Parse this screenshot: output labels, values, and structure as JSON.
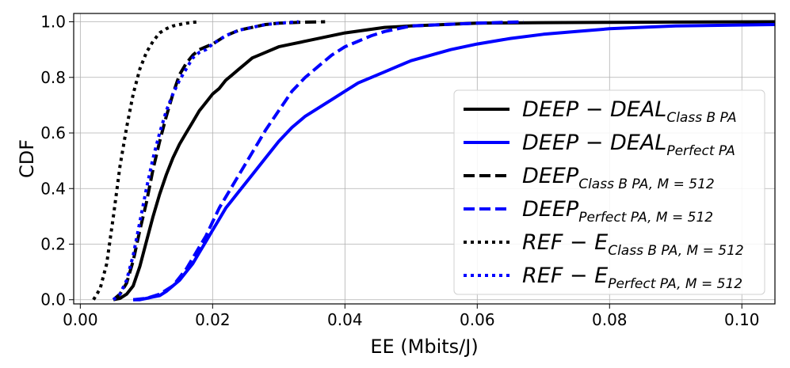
{
  "chart_data": {
    "type": "line",
    "title": "",
    "xlabel": "EE (Mbits/J)",
    "ylabel": "CDF",
    "xlim": [
      -0.001,
      0.105
    ],
    "ylim": [
      -0.015,
      1.03
    ],
    "xticks": [
      "0.00",
      "0.02",
      "0.04",
      "0.06",
      "0.08",
      "0.10"
    ],
    "xtick_values": [
      0.0,
      0.02,
      0.04,
      0.06,
      0.08,
      0.1
    ],
    "yticks": [
      "0.0",
      "0.2",
      "0.4",
      "0.6",
      "0.8",
      "1.0"
    ],
    "ytick_values": [
      0.0,
      0.2,
      0.4,
      0.6,
      0.8,
      1.0
    ],
    "grid": true,
    "legend_position": "lower-right",
    "series": [
      {
        "name": "DEEP − DEAL",
        "subscript": "Class B PA",
        "color": "#000000",
        "style": "solid",
        "x": [
          0.005,
          0.006,
          0.007,
          0.008,
          0.009,
          0.01,
          0.011,
          0.012,
          0.013,
          0.014,
          0.015,
          0.016,
          0.017,
          0.018,
          0.019,
          0.02,
          0.021,
          0.022,
          0.023,
          0.024,
          0.025,
          0.026,
          0.027,
          0.028,
          0.03,
          0.032,
          0.034,
          0.036,
          0.038,
          0.04,
          0.043,
          0.046,
          0.05,
          0.055,
          0.06,
          0.07,
          0.08,
          0.09,
          0.105
        ],
        "y": [
          0.0,
          0.005,
          0.02,
          0.05,
          0.12,
          0.21,
          0.3,
          0.38,
          0.45,
          0.51,
          0.56,
          0.6,
          0.64,
          0.68,
          0.71,
          0.74,
          0.76,
          0.79,
          0.81,
          0.83,
          0.85,
          0.87,
          0.88,
          0.89,
          0.91,
          0.92,
          0.93,
          0.94,
          0.95,
          0.96,
          0.97,
          0.98,
          0.985,
          0.99,
          0.995,
          0.997,
          0.998,
          0.999,
          1.0
        ]
      },
      {
        "name": "DEEP − DEAL",
        "subscript": "Perfect PA",
        "color": "#0000ff",
        "style": "solid",
        "x": [
          0.008,
          0.009,
          0.01,
          0.011,
          0.012,
          0.013,
          0.014,
          0.015,
          0.016,
          0.017,
          0.018,
          0.019,
          0.02,
          0.021,
          0.022,
          0.023,
          0.024,
          0.026,
          0.028,
          0.03,
          0.032,
          0.034,
          0.036,
          0.038,
          0.04,
          0.042,
          0.044,
          0.046,
          0.048,
          0.05,
          0.053,
          0.056,
          0.06,
          0.065,
          0.07,
          0.075,
          0.08,
          0.09,
          0.105
        ],
        "y": [
          0.0,
          0.0,
          0.005,
          0.01,
          0.015,
          0.03,
          0.05,
          0.07,
          0.1,
          0.13,
          0.17,
          0.21,
          0.25,
          0.29,
          0.33,
          0.36,
          0.39,
          0.45,
          0.51,
          0.57,
          0.62,
          0.66,
          0.69,
          0.72,
          0.75,
          0.78,
          0.8,
          0.82,
          0.84,
          0.86,
          0.88,
          0.9,
          0.92,
          0.94,
          0.955,
          0.965,
          0.975,
          0.985,
          0.99
        ]
      },
      {
        "name": "DEEP",
        "subscript": "Class B PA, M = 512",
        "color": "#000000",
        "style": "dashed",
        "x": [
          0.005,
          0.006,
          0.007,
          0.008,
          0.009,
          0.01,
          0.011,
          0.012,
          0.013,
          0.014,
          0.015,
          0.016,
          0.017,
          0.018,
          0.019,
          0.02,
          0.022,
          0.024,
          0.026,
          0.028,
          0.03,
          0.033,
          0.037
        ],
        "y": [
          0.0,
          0.02,
          0.06,
          0.14,
          0.25,
          0.35,
          0.47,
          0.57,
          0.66,
          0.74,
          0.81,
          0.85,
          0.88,
          0.9,
          0.91,
          0.92,
          0.95,
          0.97,
          0.98,
          0.99,
          0.995,
          0.998,
          1.0
        ]
      },
      {
        "name": "DEEP",
        "subscript": "Perfect PA, M = 512",
        "color": "#0000ff",
        "style": "dashed",
        "x": [
          0.008,
          0.01,
          0.012,
          0.014,
          0.015,
          0.016,
          0.017,
          0.018,
          0.019,
          0.02,
          0.021,
          0.022,
          0.023,
          0.024,
          0.025,
          0.026,
          0.027,
          0.028,
          0.03,
          0.032,
          0.034,
          0.036,
          0.038,
          0.04,
          0.042,
          0.044,
          0.046,
          0.048,
          0.05,
          0.055,
          0.06,
          0.067
        ],
        "y": [
          0.0,
          0.005,
          0.02,
          0.05,
          0.08,
          0.11,
          0.15,
          0.19,
          0.23,
          0.28,
          0.33,
          0.37,
          0.41,
          0.45,
          0.49,
          0.53,
          0.57,
          0.61,
          0.68,
          0.75,
          0.8,
          0.84,
          0.88,
          0.91,
          0.93,
          0.95,
          0.965,
          0.975,
          0.985,
          0.99,
          0.995,
          1.0
        ]
      },
      {
        "name": "REF − E",
        "subscript": "Class B PA, M = 512",
        "color": "#000000",
        "style": "dotted",
        "x": [
          0.002,
          0.003,
          0.004,
          0.005,
          0.006,
          0.007,
          0.008,
          0.009,
          0.01,
          0.011,
          0.012,
          0.013,
          0.014,
          0.015,
          0.016,
          0.017,
          0.018
        ],
        "y": [
          0.0,
          0.04,
          0.13,
          0.3,
          0.48,
          0.62,
          0.74,
          0.83,
          0.89,
          0.93,
          0.96,
          0.975,
          0.985,
          0.99,
          0.995,
          0.998,
          1.0
        ]
      },
      {
        "name": "REF − E",
        "subscript": "Perfect PA, M = 512",
        "color": "#0000ff",
        "style": "dotted",
        "x": [
          0.005,
          0.006,
          0.007,
          0.008,
          0.009,
          0.01,
          0.011,
          0.012,
          0.013,
          0.014,
          0.015,
          0.016,
          0.017,
          0.018,
          0.019,
          0.02,
          0.022,
          0.024,
          0.026,
          0.028,
          0.03,
          0.033
        ],
        "y": [
          0.0,
          0.02,
          0.07,
          0.16,
          0.28,
          0.4,
          0.51,
          0.6,
          0.68,
          0.74,
          0.79,
          0.83,
          0.87,
          0.89,
          0.9,
          0.92,
          0.95,
          0.97,
          0.98,
          0.99,
          0.995,
          1.0
        ]
      }
    ]
  }
}
